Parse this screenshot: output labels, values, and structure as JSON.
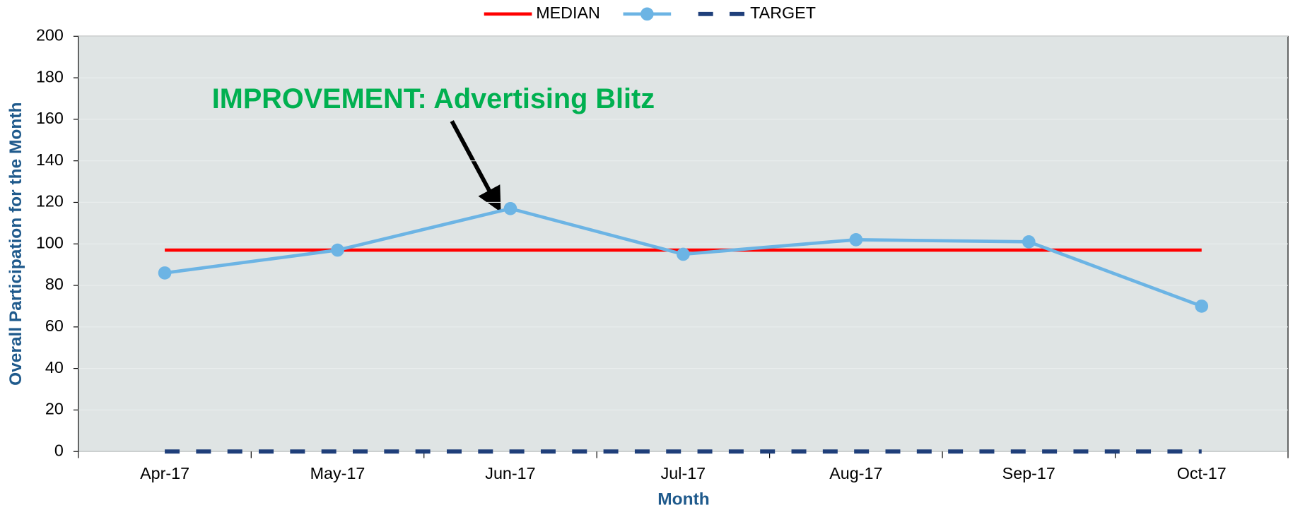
{
  "chart_data": {
    "type": "line",
    "x_label": "Month",
    "y_label": "Overall Participation for the Month",
    "annotation": "IMPROVEMENT: Advertising Blitz",
    "categories": [
      "Apr-17",
      "May-17",
      "Jun-17",
      "Jul-17",
      "Aug-17",
      "Sep-17",
      "Oct-17"
    ],
    "series": [
      {
        "name": "MEDIAN",
        "color": "#ff0000",
        "values": [
          97,
          97,
          97,
          97,
          97,
          97,
          97
        ]
      },
      {
        "color": "#6cb4e4",
        "marker": true,
        "values": [
          86,
          97,
          117,
          95,
          102,
          101,
          70
        ]
      },
      {
        "name": "TARGET",
        "color": "#1f3f7a",
        "dashed": true,
        "values": [
          0,
          0,
          0,
          0,
          0,
          0,
          0
        ]
      }
    ],
    "ylim": [
      0,
      200
    ],
    "yticks": [
      0,
      20,
      40,
      60,
      80,
      100,
      120,
      140,
      160,
      180,
      200
    ],
    "grid": true,
    "legend": "top"
  }
}
